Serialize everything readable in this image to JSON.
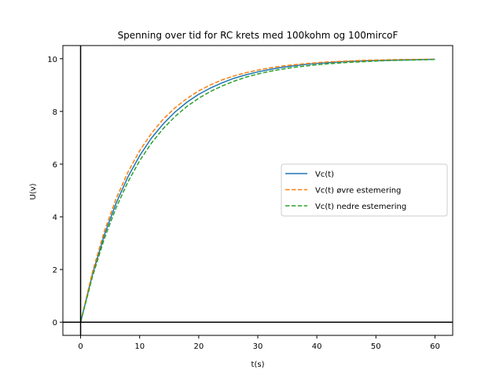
{
  "chart_data": {
    "type": "line",
    "title": "Spenning over tid for RC krets med 100kohm og 100mircoF",
    "xlabel": "t(s)",
    "ylabel": "U(v)",
    "xlim": [
      -3,
      63
    ],
    "ylim": [
      -0.5,
      10.5
    ],
    "xticks": [
      0,
      10,
      20,
      30,
      40,
      50,
      60
    ],
    "yticks": [
      0,
      2,
      4,
      6,
      8,
      10
    ],
    "grid": false,
    "legend_position": "center-right",
    "reference_lines": [
      {
        "axis": "x",
        "value": 0,
        "color": "#000000"
      },
      {
        "axis": "y",
        "value": 0,
        "color": "#000000"
      }
    ],
    "x": [
      0,
      2,
      4,
      6,
      8,
      10,
      12,
      14,
      16,
      18,
      20,
      22,
      24,
      26,
      28,
      30,
      32,
      34,
      36,
      38,
      40,
      42,
      44,
      46,
      48,
      50,
      52,
      54,
      56,
      58,
      60
    ],
    "series": [
      {
        "name": "Vc(t)",
        "color": "#1f77b4",
        "style": "solid",
        "values": [
          0,
          1.81,
          3.3,
          4.51,
          5.51,
          6.32,
          6.99,
          7.53,
          7.98,
          8.35,
          8.65,
          8.89,
          9.09,
          9.26,
          9.39,
          9.5,
          9.59,
          9.67,
          9.73,
          9.78,
          9.82,
          9.85,
          9.88,
          9.9,
          9.92,
          9.93,
          9.94,
          9.95,
          9.96,
          9.97,
          9.98
        ]
      },
      {
        "name": "Vc(t) øvre estemering",
        "color": "#ff7f0e",
        "style": "dashed",
        "values": [
          0,
          1.9,
          3.44,
          4.68,
          5.69,
          6.51,
          7.17,
          7.71,
          8.14,
          8.49,
          8.78,
          9.01,
          9.2,
          9.35,
          9.47,
          9.57,
          9.65,
          9.72,
          9.77,
          9.81,
          9.85,
          9.88,
          9.9,
          9.92,
          9.94,
          9.95,
          9.96,
          9.97,
          9.97,
          9.98,
          9.98
        ]
      },
      {
        "name": "Vc(t) nedre estemering",
        "color": "#2ca02c",
        "style": "dashed",
        "values": [
          0,
          1.72,
          3.16,
          4.34,
          5.32,
          6.13,
          6.8,
          7.35,
          7.81,
          8.19,
          8.5,
          8.76,
          8.97,
          9.15,
          9.3,
          9.42,
          9.52,
          9.6,
          9.67,
          9.72,
          9.77,
          9.81,
          9.84,
          9.87,
          9.89,
          9.91,
          9.93,
          9.94,
          9.95,
          9.96,
          9.97
        ]
      }
    ]
  }
}
